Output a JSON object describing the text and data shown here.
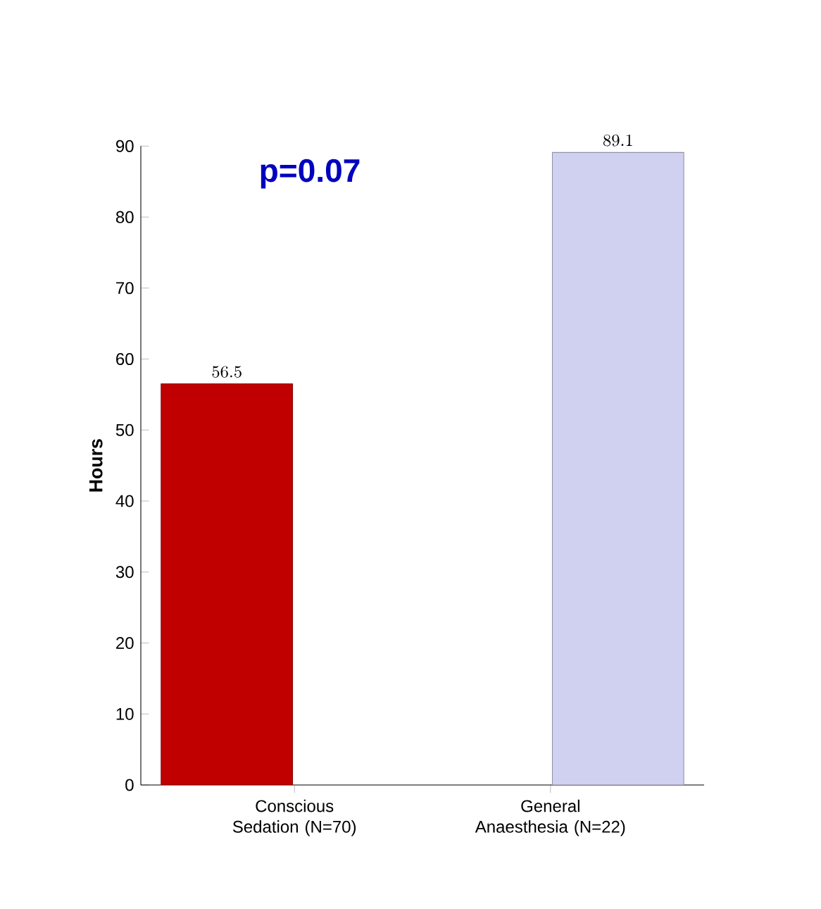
{
  "chart_data": {
    "type": "bar",
    "ylabel": "Hours",
    "categories": [
      "Conscious Sedation (N=70)",
      "General Anaesthesia (N=22)"
    ],
    "values": [
      56.5,
      89.1
    ],
    "colors": [
      "#c00000",
      "#d0d0f0"
    ],
    "ylim": [
      0,
      90
    ],
    "yticks": [
      0,
      10,
      20,
      30,
      40,
      50,
      60,
      70,
      80,
      90
    ],
    "data_labels": true,
    "annotations": [
      "p=0.07"
    ]
  }
}
